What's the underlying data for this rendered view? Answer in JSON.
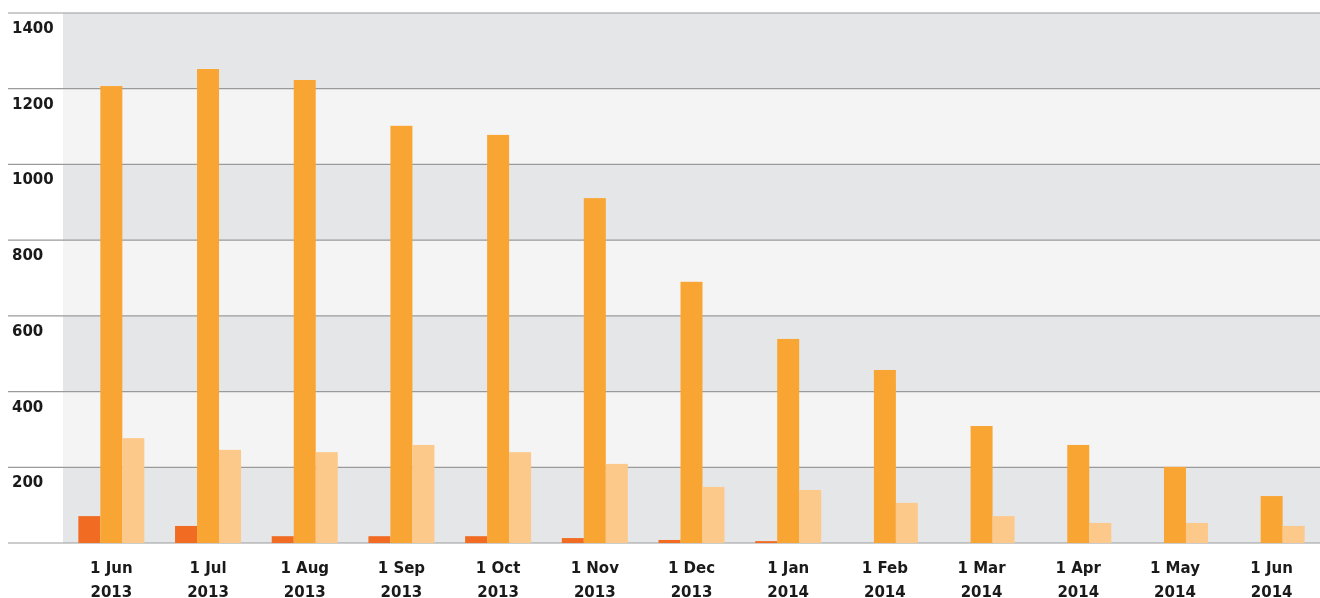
{
  "chart_data": {
    "type": "bar",
    "categories": [
      "1 Jun 2013",
      "1 Jul 2013",
      "1 Aug 2013",
      "1 Sep 2013",
      "1 Oct 2013",
      "1 Nov 2013",
      "1 Dec 2013",
      "1 Jan 2014",
      "1 Feb 2014",
      "1 Mar 2014",
      "1 Apr 2014",
      "1 May 2014",
      "1 Jun 2014"
    ],
    "series": [
      {
        "color": "#f26b22",
        "values": [
          71,
          45,
          18,
          18,
          18,
          13,
          8,
          5,
          0,
          0,
          0,
          0,
          0
        ]
      },
      {
        "color": "#f9a533",
        "values": [
          1207,
          1252,
          1223,
          1102,
          1078,
          911,
          690,
          539,
          457,
          309,
          259,
          201,
          124
        ]
      },
      {
        "color": "#fdc98b",
        "values": [
          277,
          246,
          240,
          259,
          240,
          209,
          148,
          140,
          106,
          71,
          53,
          53,
          45
        ]
      }
    ],
    "ylim": [
      0,
      1400
    ],
    "yticks": [
      {
        "value": 0,
        "label": null
      },
      200,
      400,
      600,
      800,
      1000,
      1200,
      1400
    ],
    "grid": true
  }
}
